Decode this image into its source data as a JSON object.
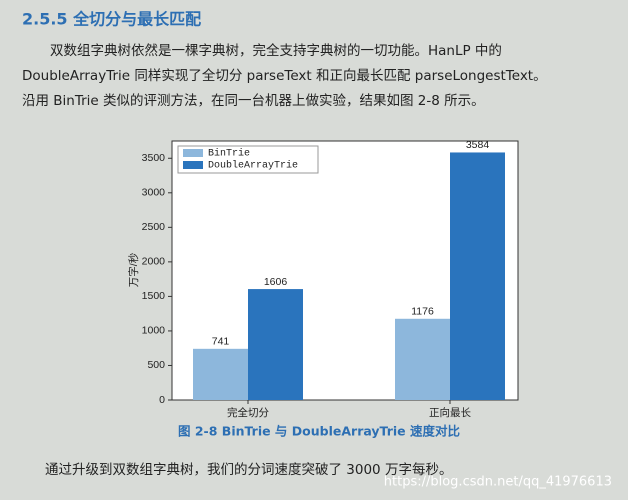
{
  "header": {
    "title": "2.5.5  全切分与最长匹配"
  },
  "paragraph": {
    "lines": [
      "双数组字典树依然是一棵字典树，完全支持字典树的一切功能。HanLP 中的",
      "DoubleArrayTrie 同样实现了全切分 parseText 和正向最长匹配 parseLongestText。",
      "沿用 BinTrie 类似的评测方法，在同一台机器上做实验，结果如图 2-8 所示。"
    ]
  },
  "chart_data": {
    "type": "bar",
    "y_label": "万字/秒",
    "categories": [
      "完全切分",
      "正向最长"
    ],
    "series": [
      {
        "name": "BinTrie",
        "color": "#8db7dc",
        "values": [
          741,
          1176
        ]
      },
      {
        "name": "DoubleArrayTrie",
        "color": "#2a74bd",
        "values": [
          1606,
          3584
        ]
      }
    ],
    "ylim": [
      0,
      3750
    ],
    "yticks": [
      0,
      500,
      1000,
      1500,
      2000,
      2500,
      3000,
      3500
    ],
    "legend": "upper left"
  },
  "caption": "图 2-8   BinTrie 与 DoubleArrayTrie 速度对比",
  "footer_text": "通过升级到双数组字典树，我们的分词速度突破了 3000 万字每秒。",
  "watermark": "https://blog.csdn.net/qq_41976613"
}
